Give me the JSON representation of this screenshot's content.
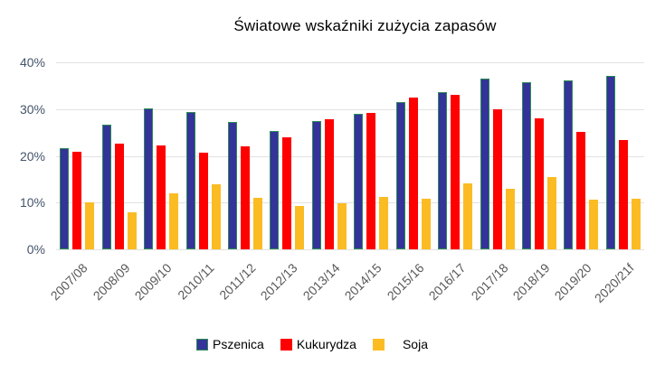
{
  "page": {
    "background": "#ffffff"
  },
  "chart_data": {
    "type": "bar",
    "title": "Światowe wskaźniki zużycia zapasów",
    "xlabel": "",
    "ylabel": "",
    "categories": [
      "2007/08",
      "2008/09",
      "2009/10",
      "2010/11",
      "2011/12",
      "2012/13",
      "2013/14",
      "2014/15",
      "2015/16",
      "2016/17",
      "2017/18",
      "2018/19",
      "2019/20",
      "2020/21f"
    ],
    "series": [
      {
        "name": "Pszenica",
        "color": "#333399",
        "border_color": "#2E8B57",
        "values": [
          21.7,
          26.7,
          30.1,
          29.3,
          27.3,
          25.4,
          27.4,
          28.9,
          31.5,
          33.6,
          36.6,
          35.7,
          36.1,
          37.2
        ]
      },
      {
        "name": "Kukurydza",
        "color": "#FF0000",
        "values": [
          20.8,
          22.6,
          22.2,
          20.7,
          22.1,
          23.9,
          27.8,
          29.2,
          32.4,
          33.1,
          30.0,
          28.1,
          25.2,
          23.3
        ]
      },
      {
        "name": "Soja",
        "color": "#FBBC23",
        "values": [
          10.0,
          8.0,
          12.0,
          14.0,
          11.0,
          9.3,
          9.9,
          11.2,
          10.9,
          14.2,
          12.9,
          15.5,
          10.7,
          10.8
        ]
      }
    ],
    "ylim": [
      0,
      40
    ],
    "y_axis": {
      "ticks": [
        "40%",
        "30%",
        "20%",
        "10%",
        "0%"
      ],
      "tick_values": [
        40,
        30,
        20,
        10,
        0
      ]
    },
    "grid": true,
    "legend_position": "bottom",
    "colors": {
      "gridline": "#E2E2E2",
      "title_text": "#000000",
      "y_tick_text": "#44546A",
      "x_tick_text": "#595959",
      "legend_text": "#000000"
    }
  }
}
